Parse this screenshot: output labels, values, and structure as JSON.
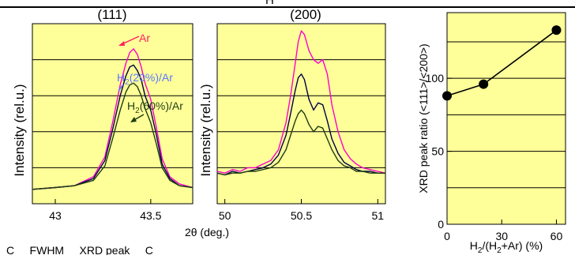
{
  "colors": {
    "panel_bg": "#ffff99",
    "ar": "#ff00cc",
    "ar_label": "#ff2060",
    "h2_20": "#000044",
    "h2_20_label": "#5a78ff",
    "h2_60": "#1e3d12",
    "h2_60_label": "#1e3d12",
    "ratio": "#000000"
  },
  "top_cut_text": "H",
  "footer_text": "C     FWHM     XRD peak     C                     ",
  "shared_xlabel": "2θ (deg.)",
  "chart_data": [
    {
      "type": "line",
      "title": "(111)",
      "xlabel": "",
      "ylabel": "Intensity  (rel.u.)",
      "xlim": [
        42.88,
        43.72
      ],
      "ylim": [
        0,
        1
      ],
      "xticks": [
        43,
        43.5
      ],
      "xtick_labels": [
        "43",
        "43.5"
      ],
      "grid": "horizontal",
      "series": [
        {
          "name": "Ar",
          "color_key": "ar",
          "x": [
            42.88,
            43.0,
            43.1,
            43.2,
            43.26,
            43.3,
            43.34,
            43.37,
            43.39,
            43.41,
            43.43,
            43.45,
            43.47,
            43.5,
            43.53,
            43.56,
            43.6,
            43.65,
            43.72
          ],
          "y": [
            0.08,
            0.09,
            0.1,
            0.15,
            0.26,
            0.45,
            0.66,
            0.78,
            0.84,
            0.86,
            0.83,
            0.76,
            0.67,
            0.58,
            0.42,
            0.25,
            0.15,
            0.11,
            0.09
          ]
        },
        {
          "name": "H2(20%)/Ar",
          "color_key": "h2_20",
          "x": [
            42.88,
            43.0,
            43.1,
            43.2,
            43.26,
            43.3,
            43.34,
            43.37,
            43.39,
            43.41,
            43.43,
            43.45,
            43.47,
            43.5,
            43.53,
            43.56,
            43.6,
            43.65,
            43.72
          ],
          "y": [
            0.08,
            0.09,
            0.1,
            0.14,
            0.24,
            0.41,
            0.6,
            0.71,
            0.76,
            0.77,
            0.74,
            0.69,
            0.6,
            0.52,
            0.38,
            0.22,
            0.14,
            0.1,
            0.09
          ]
        },
        {
          "name": "H2(60%)/Ar",
          "color_key": "h2_60",
          "x": [
            42.88,
            43.0,
            43.1,
            43.2,
            43.26,
            43.3,
            43.34,
            43.37,
            43.39,
            43.41,
            43.43,
            43.45,
            43.47,
            43.5,
            43.53,
            43.56,
            43.6,
            43.65,
            43.72
          ],
          "y": [
            0.08,
            0.09,
            0.1,
            0.13,
            0.21,
            0.36,
            0.52,
            0.62,
            0.66,
            0.67,
            0.65,
            0.6,
            0.53,
            0.45,
            0.33,
            0.2,
            0.13,
            0.1,
            0.09
          ]
        }
      ],
      "labels": [
        {
          "text": "Ar",
          "color_key": "ar_label"
        },
        {
          "text_main": "H",
          "text_sub": "2",
          "text_rest": "(20%)/Ar",
          "color_key": "h2_20_label"
        },
        {
          "text_main": "H",
          "text_sub": "2",
          "text_rest": "(60%)/Ar",
          "color_key": "h2_60_label"
        }
      ]
    },
    {
      "type": "line",
      "title": "(200)",
      "xlabel": "",
      "ylabel": "Intensity  (rel.u.)",
      "xlim": [
        49.95,
        51.05
      ],
      "ylim": [
        0,
        1
      ],
      "xticks": [
        50,
        50.5,
        51
      ],
      "xtick_labels": [
        "50",
        "50.5",
        "51"
      ],
      "grid": "horizontal",
      "series": [
        {
          "name": "Ar",
          "color_key": "ar",
          "x": [
            49.95,
            50.0,
            50.05,
            50.1,
            50.15,
            50.2,
            50.25,
            50.3,
            50.35,
            50.4,
            50.43,
            50.46,
            50.48,
            50.5,
            50.52,
            50.55,
            50.58,
            50.61,
            50.64,
            50.67,
            50.7,
            50.74,
            50.78,
            50.82,
            50.86,
            50.9,
            50.95,
            51.0,
            51.05
          ],
          "y": [
            0.18,
            0.17,
            0.19,
            0.18,
            0.2,
            0.2,
            0.22,
            0.24,
            0.3,
            0.45,
            0.6,
            0.78,
            0.9,
            0.96,
            0.94,
            0.85,
            0.8,
            0.78,
            0.8,
            0.72,
            0.55,
            0.4,
            0.3,
            0.25,
            0.22,
            0.2,
            0.19,
            0.18,
            0.17
          ]
        },
        {
          "name": "H2(20%)/Ar",
          "color_key": "h2_20",
          "x": [
            49.95,
            50.0,
            50.05,
            50.1,
            50.15,
            50.2,
            50.25,
            50.3,
            50.35,
            50.4,
            50.43,
            50.46,
            50.48,
            50.5,
            50.52,
            50.55,
            50.58,
            50.61,
            50.64,
            50.67,
            50.7,
            50.74,
            50.78,
            50.82,
            50.86,
            50.9,
            50.95,
            51.0,
            51.05
          ],
          "y": [
            0.17,
            0.16,
            0.18,
            0.17,
            0.18,
            0.19,
            0.2,
            0.22,
            0.27,
            0.38,
            0.5,
            0.63,
            0.7,
            0.72,
            0.69,
            0.58,
            0.52,
            0.56,
            0.55,
            0.46,
            0.36,
            0.28,
            0.23,
            0.21,
            0.19,
            0.18,
            0.18,
            0.17,
            0.17
          ]
        },
        {
          "name": "H2(60%)/Ar",
          "color_key": "h2_60",
          "x": [
            49.95,
            50.0,
            50.05,
            50.1,
            50.15,
            50.2,
            50.25,
            50.3,
            50.35,
            50.4,
            50.43,
            50.46,
            50.48,
            50.5,
            50.52,
            50.55,
            50.58,
            50.61,
            50.64,
            50.67,
            50.7,
            50.74,
            50.78,
            50.82,
            50.86,
            50.9,
            50.95,
            51.0,
            51.05
          ],
          "y": [
            0.17,
            0.16,
            0.17,
            0.17,
            0.18,
            0.18,
            0.19,
            0.2,
            0.23,
            0.3,
            0.38,
            0.46,
            0.5,
            0.52,
            0.5,
            0.44,
            0.4,
            0.43,
            0.42,
            0.36,
            0.3,
            0.24,
            0.21,
            0.2,
            0.18,
            0.18,
            0.17,
            0.17,
            0.17
          ]
        }
      ]
    },
    {
      "type": "line",
      "title": "",
      "xlabel_main": "H",
      "xlabel_sub1": "2",
      "xlabel_mid": "/(H",
      "xlabel_sub2": "2",
      "xlabel_rest": "+Ar) (%)",
      "ylabel": "XRD peak ratio (<111>/<200>)",
      "xlim": [
        0,
        65
      ],
      "ylim": [
        0,
        145
      ],
      "xticks": [
        0,
        30,
        60
      ],
      "xtick_labels": [
        "0",
        "30",
        "60"
      ],
      "yticks": [
        0,
        50,
        100
      ],
      "ytick_labels": [
        "0",
        "50",
        "100"
      ],
      "grid": "horizontal",
      "series": [
        {
          "name": "",
          "color_key": "ratio",
          "marker": "circle",
          "x": [
            0,
            20,
            60
          ],
          "y": [
            88,
            96,
            133
          ]
        }
      ]
    }
  ]
}
